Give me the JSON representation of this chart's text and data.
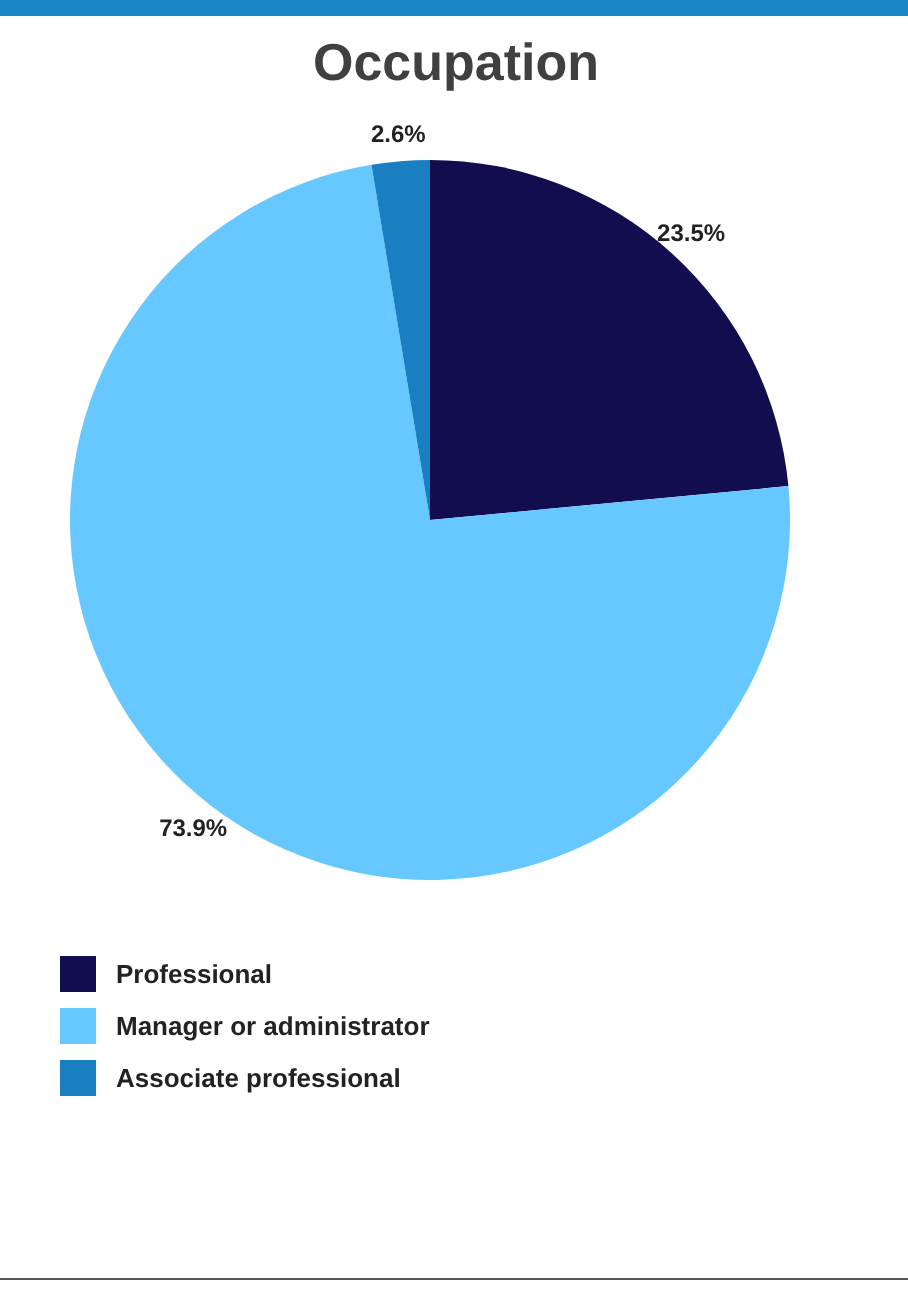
{
  "chart_data": {
    "type": "pie",
    "title": "Occupation",
    "categories": [
      "Professional",
      "Manager or administrator",
      "Associate professional"
    ],
    "values": [
      23.5,
      73.9,
      2.6
    ],
    "colors": [
      "#120d4f",
      "#66c8ff",
      "#1a7fc0"
    ],
    "value_labels": [
      "23.5%",
      "73.9%",
      "2.6%"
    ],
    "legend": "bottom"
  }
}
